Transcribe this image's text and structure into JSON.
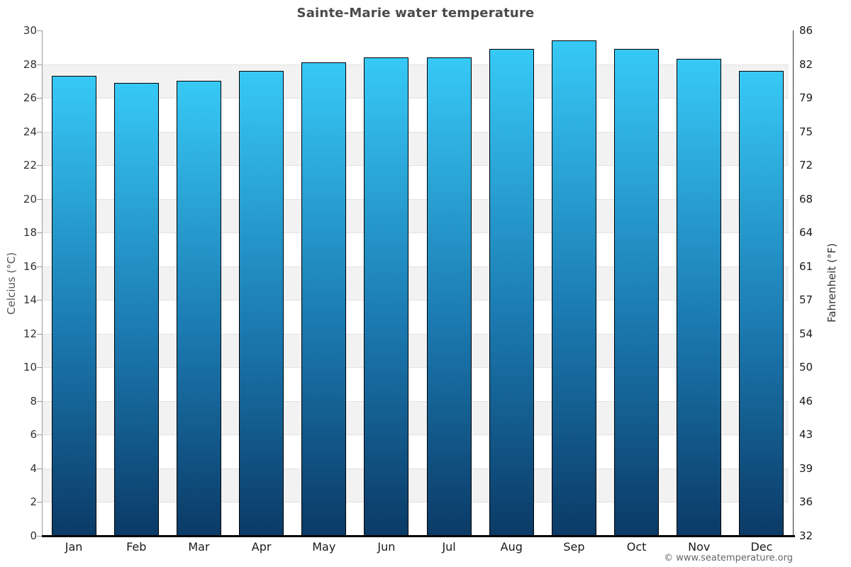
{
  "title": "Sainte-Marie water temperature",
  "watermark": "© www.seatemperature.org",
  "axes": {
    "left_label": "Celcius (°C)",
    "right_label": "Fahrenheit (°F)"
  },
  "chart_data": {
    "type": "bar",
    "title": "Sainte-Marie water temperature",
    "categories": [
      "Jan",
      "Feb",
      "Mar",
      "Apr",
      "May",
      "Jun",
      "Jul",
      "Aug",
      "Sep",
      "Oct",
      "Nov",
      "Dec"
    ],
    "values": [
      27.3,
      26.9,
      27.0,
      27.6,
      28.1,
      28.4,
      28.4,
      28.9,
      29.4,
      28.9,
      28.3,
      27.6
    ],
    "unit": "°C",
    "xlabel": "",
    "ylabel": "Celcius (°C)",
    "ylabel_right": "Fahrenheit (°F)",
    "ylim": [
      0,
      30
    ],
    "yticks_celsius": [
      0,
      2,
      4,
      6,
      8,
      10,
      12,
      14,
      16,
      18,
      20,
      22,
      24,
      26,
      28,
      30
    ],
    "yticks_fahrenheit": [
      32,
      36,
      39,
      43,
      46,
      50,
      54,
      57,
      61,
      64,
      68,
      72,
      75,
      79,
      82,
      86
    ],
    "grid": "alternating horizontal bands every 2°C",
    "legend": "none",
    "colors": {
      "bar_gradient_top": "#37c9f6",
      "bar_gradient_bottom": "#0b3a66",
      "bar_border": "#000000",
      "band": "#f2f2f2",
      "gridline": "#e2e2e2",
      "title_text": "#4a4a4a",
      "tick_text": "#333333"
    }
  }
}
